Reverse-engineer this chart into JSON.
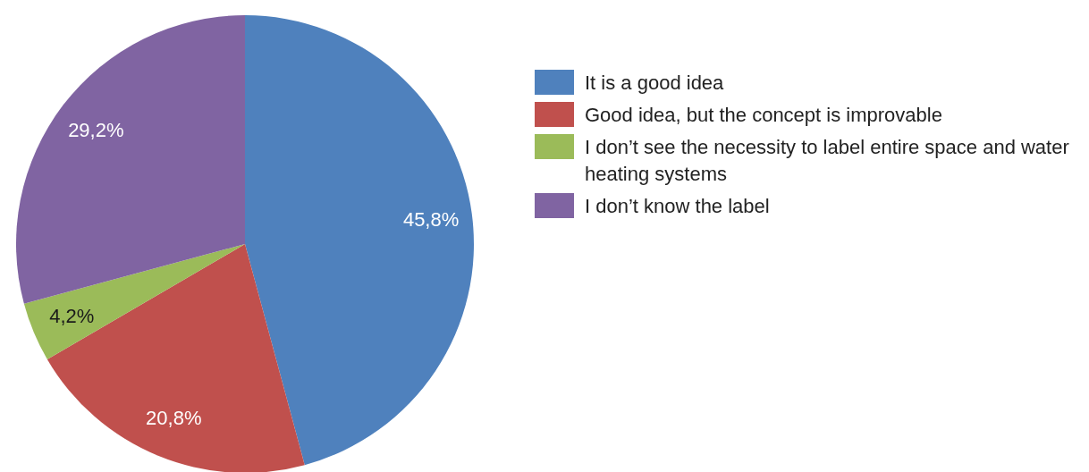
{
  "chart_data": {
    "type": "pie",
    "categories": [
      "It is a good idea",
      "Good idea, but the concept is improvable",
      "I don’t see the necessity to label entire space and water heating systems",
      "I don’t know the label"
    ],
    "values": [
      45.8,
      20.8,
      4.2,
      29.2
    ],
    "colors": [
      "#4f81bd",
      "#c0504d",
      "#9bbb59",
      "#8064a2"
    ],
    "value_labels": [
      "45,8%",
      "20,8%",
      "4,2%",
      "29,2%"
    ],
    "legend": "right"
  }
}
